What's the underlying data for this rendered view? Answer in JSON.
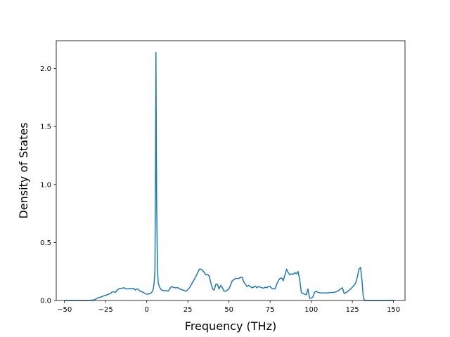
{
  "chart_data": {
    "type": "line",
    "title": "",
    "xlabel": "Frequency (THz)",
    "ylabel": "Density of States",
    "xlim": [
      -55,
      157
    ],
    "ylim": [
      0,
      2.24
    ],
    "xticks": [
      -50,
      -25,
      0,
      25,
      50,
      75,
      100,
      125,
      150
    ],
    "xtick_labels": [
      "−50",
      "−25",
      "0",
      "25",
      "50",
      "75",
      "100",
      "125",
      "150"
    ],
    "yticks": [
      0.0,
      0.5,
      1.0,
      1.5,
      2.0
    ],
    "ytick_labels": [
      "0.0",
      "0.5",
      "1.0",
      "1.5",
      "2.0"
    ],
    "grid": false,
    "legend": "none",
    "series": [
      {
        "color": "#1f77b4",
        "x": [
          -50,
          -45,
          -40,
          -35,
          -32,
          -30,
          -28,
          -26,
          -24,
          -22,
          -21,
          -20,
          -19,
          -18,
          -17,
          -16,
          -15,
          -14,
          -13,
          -12,
          -11,
          -10,
          -9,
          -8,
          -7,
          -6,
          -5,
          -4,
          -3,
          -2,
          -1,
          0,
          1,
          2,
          3,
          3.5,
          4,
          4.5,
          5,
          5.3,
          5.6,
          6,
          6.5,
          7,
          8,
          9,
          10,
          12,
          13,
          14,
          15,
          17,
          19,
          20,
          22,
          24,
          26,
          28,
          30,
          32,
          33,
          34,
          36,
          37,
          38,
          39,
          40,
          41,
          42,
          43,
          44,
          45,
          46,
          47,
          48,
          50,
          52,
          54,
          56,
          57,
          58,
          59,
          60,
          61,
          62,
          63,
          64,
          65,
          66,
          67,
          68,
          70,
          71,
          72,
          73,
          74,
          75,
          76,
          77,
          78,
          79,
          80,
          81,
          82,
          83,
          84,
          85,
          86,
          87,
          88,
          89,
          90,
          91,
          92,
          93,
          94,
          95,
          96,
          97,
          98,
          99,
          100,
          101,
          102,
          103,
          104,
          106,
          108,
          110,
          112,
          114,
          116,
          117,
          118,
          119,
          120,
          122,
          124,
          126,
          127,
          128,
          129,
          130,
          131,
          131.5,
          132,
          133,
          140,
          150
        ],
        "y": [
          0.0,
          0.0,
          0.0,
          0.0,
          0.005,
          0.02,
          0.03,
          0.04,
          0.05,
          0.06,
          0.075,
          0.075,
          0.07,
          0.09,
          0.1,
          0.105,
          0.105,
          0.11,
          0.105,
          0.1,
          0.1,
          0.105,
          0.1,
          0.105,
          0.09,
          0.1,
          0.095,
          0.08,
          0.075,
          0.07,
          0.06,
          0.055,
          0.055,
          0.06,
          0.07,
          0.08,
          0.1,
          0.15,
          0.26,
          1.0,
          2.14,
          0.9,
          0.28,
          0.15,
          0.11,
          0.09,
          0.085,
          0.085,
          0.08,
          0.1,
          0.12,
          0.11,
          0.11,
          0.1,
          0.09,
          0.08,
          0.11,
          0.16,
          0.21,
          0.27,
          0.27,
          0.26,
          0.22,
          0.225,
          0.21,
          0.15,
          0.1,
          0.09,
          0.14,
          0.14,
          0.1,
          0.13,
          0.11,
          0.08,
          0.08,
          0.1,
          0.17,
          0.19,
          0.19,
          0.2,
          0.2,
          0.16,
          0.14,
          0.12,
          0.13,
          0.12,
          0.11,
          0.115,
          0.125,
          0.11,
          0.12,
          0.11,
          0.105,
          0.115,
          0.11,
          0.12,
          0.12,
          0.105,
          0.1,
          0.1,
          0.14,
          0.17,
          0.19,
          0.195,
          0.17,
          0.22,
          0.27,
          0.24,
          0.22,
          0.23,
          0.225,
          0.24,
          0.23,
          0.25,
          0.18,
          0.07,
          0.06,
          0.055,
          0.05,
          0.1,
          0.02,
          0.02,
          0.03,
          0.07,
          0.08,
          0.07,
          0.065,
          0.065,
          0.065,
          0.07,
          0.07,
          0.08,
          0.09,
          0.1,
          0.11,
          0.06,
          0.075,
          0.1,
          0.13,
          0.15,
          0.2,
          0.27,
          0.285,
          0.15,
          0.05,
          0.01,
          0.0,
          0.0,
          0.0
        ]
      }
    ]
  }
}
